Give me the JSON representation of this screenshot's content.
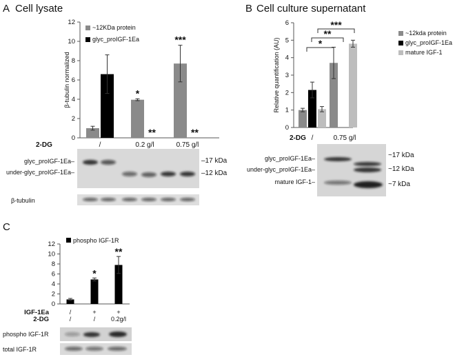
{
  "panels": {
    "A": {
      "letter": "A",
      "title": "Cell lysate"
    },
    "B": {
      "letter": "B",
      "title": "Cell culture supernatant"
    },
    "C": {
      "letter": "C",
      "title": ""
    }
  },
  "blots": {
    "A": {
      "main_labels": [
        "glyc_proIGF-1Ea",
        "under-glyc_proIGF-1Ea"
      ],
      "markers": [
        "17 kDa",
        "12 kDa"
      ],
      "loading_label": "β-tubulin"
    },
    "B": {
      "main_labels": [
        "glyc_proIGF-1Ea",
        "under-glyc_proIGF-1Ea",
        "mature IGF-1"
      ],
      "markers": [
        "17 kDa",
        "12 kDa",
        "7 kDa"
      ]
    },
    "C": {
      "labels": [
        "phospho IGF-1R",
        "total IGF-1R"
      ]
    }
  },
  "chart_data": [
    {
      "id": "A",
      "type": "bar",
      "ylabel": "β-tubulin normalized",
      "ylim": [
        0,
        12
      ],
      "yticks": [
        "0",
        "2",
        "4",
        "6",
        "8",
        "10",
        "12"
      ],
      "condition_label": "2-DG",
      "categories": [
        "/",
        "0.2 g/l",
        "0.75 g/l"
      ],
      "series": [
        {
          "name": "~12KDa protein",
          "color": "#8a8a8a",
          "values": [
            1.0,
            3.95,
            7.7
          ],
          "errors": [
            0.2,
            0.1,
            1.9
          ]
        },
        {
          "name": "glyc_proIGF-1Ea",
          "color": "#000000",
          "values": [
            6.6,
            0.0,
            0.0
          ],
          "errors": [
            2.0,
            0.0,
            0.0
          ]
        }
      ],
      "annotations": [
        {
          "category": 1,
          "series": 0,
          "text": "*"
        },
        {
          "category": 1,
          "series": 1,
          "text": "**"
        },
        {
          "category": 2,
          "series": 0,
          "text": "***"
        },
        {
          "category": 2,
          "series": 1,
          "text": "**"
        }
      ],
      "legend": "top-left"
    },
    {
      "id": "B",
      "type": "bar",
      "ylabel": "Relative quantification (AU)",
      "ylim": [
        0,
        6
      ],
      "yticks": [
        "0",
        "1",
        "2",
        "3",
        "4",
        "5",
        "6"
      ],
      "condition_label": "2-DG",
      "categories": [
        "/",
        "0.75 g/l"
      ],
      "series": [
        {
          "name": "~12kda protein",
          "color": "#8a8a8a",
          "values": [
            1.0,
            3.7
          ],
          "errors": [
            0.1,
            0.9
          ]
        },
        {
          "name": "glyc_proIGF-1Ea",
          "color": "#000000",
          "values": [
            2.15,
            0.0
          ],
          "errors": [
            0.45,
            0.0
          ]
        },
        {
          "name": "mature IGF-1",
          "color": "#bdbdbd",
          "values": [
            1.05,
            4.8
          ],
          "errors": [
            0.15,
            0.2
          ]
        }
      ],
      "brackets": [
        {
          "text": "*"
        },
        {
          "text": "**"
        },
        {
          "text": "***"
        }
      ],
      "legend": "right"
    },
    {
      "id": "C",
      "type": "bar",
      "ylim": [
        0,
        12
      ],
      "yticks": [
        "0",
        "2",
        "4",
        "6",
        "8",
        "10",
        "12"
      ],
      "row_labels": [
        "IGF-1Ea",
        "2-DG"
      ],
      "categories": [
        [
          "/",
          "/"
        ],
        [
          "+",
          "/"
        ],
        [
          "+",
          "0.2g/l"
        ]
      ],
      "series": [
        {
          "name": "phospho IGF-1R",
          "color": "#000000",
          "values": [
            0.9,
            4.9,
            7.8
          ],
          "errors": [
            0.2,
            0.3,
            1.7
          ]
        }
      ],
      "annotations": [
        {
          "category": 1,
          "series": 0,
          "text": "*"
        },
        {
          "category": 2,
          "series": 0,
          "text": "**"
        }
      ],
      "legend": "top-left"
    }
  ]
}
